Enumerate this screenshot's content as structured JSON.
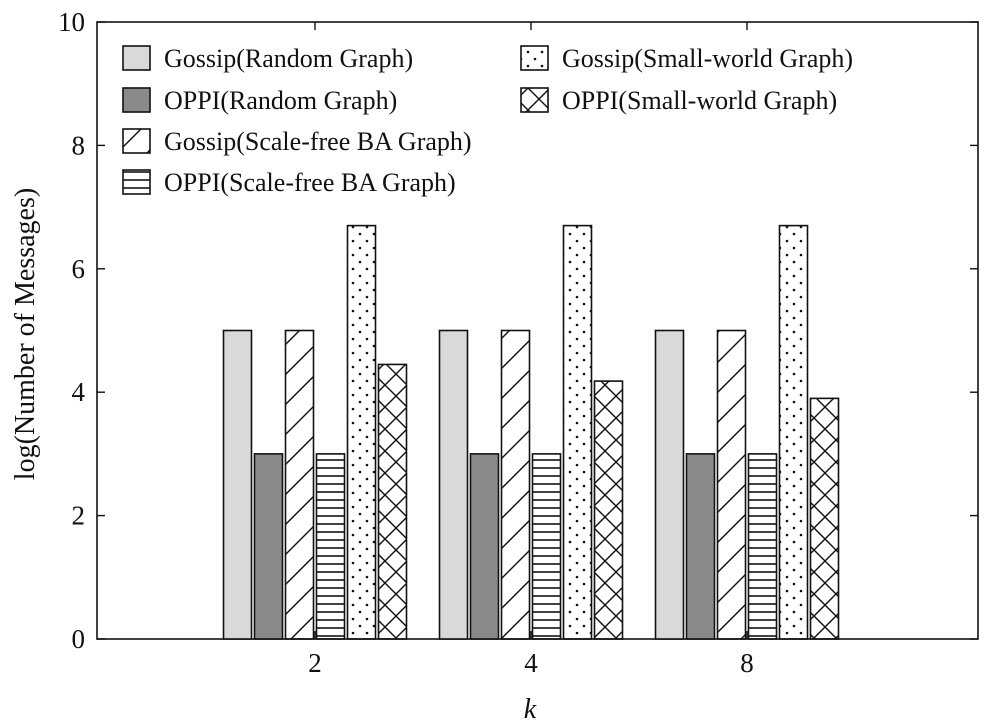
{
  "chart_data": {
    "type": "bar",
    "title": "",
    "xlabel": "k",
    "ylabel": "log(Number of Messages)",
    "ylim": [
      0,
      10
    ],
    "yticks": [
      0,
      2,
      4,
      6,
      8,
      10
    ],
    "categories": [
      "2",
      "4",
      "8"
    ],
    "series": [
      {
        "name": "Gossip(Random Graph)",
        "values": [
          5,
          5,
          5
        ],
        "pattern": "light-gray"
      },
      {
        "name": "OPPI(Random Graph)",
        "values": [
          3,
          3,
          3
        ],
        "pattern": "dark-gray"
      },
      {
        "name": "Gossip(Scale-free BA Graph)",
        "values": [
          5,
          5,
          5
        ],
        "pattern": "diagonal"
      },
      {
        "name": "OPPI(Scale-free BA Graph)",
        "values": [
          3,
          3,
          3
        ],
        "pattern": "horizontal"
      },
      {
        "name": "Gossip(Small-world Graph)",
        "values": [
          6.7,
          6.7,
          6.7
        ],
        "pattern": "dotted"
      },
      {
        "name": "OPPI(Small-world Graph)",
        "values": [
          4.45,
          4.18,
          3.9
        ],
        "pattern": "crosshatch"
      }
    ],
    "colors": {
      "light_gray": "#d9d9d9",
      "dark_gray": "#8a8a8a",
      "stroke": "#111111"
    }
  }
}
